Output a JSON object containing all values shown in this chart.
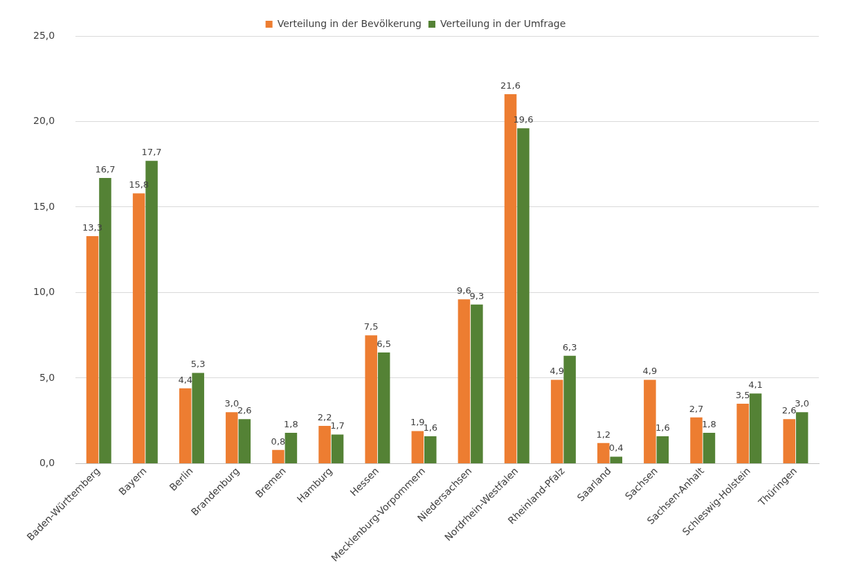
{
  "chart_data": {
    "type": "bar",
    "categories": [
      "Baden-Württemberg",
      "Bayern",
      "Berlin",
      "Brandenburg",
      "Bremen",
      "Hamburg",
      "Hessen",
      "Mecklenburg-Vorpommern",
      "Niedersachsen",
      "Nordrhein-Westfalen",
      "Rheinland-Pfalz",
      "Saarland",
      "Sachsen",
      "Sachsen-Anhalt",
      "Schleswig-Holstein",
      "Thüringen"
    ],
    "series": [
      {
        "name": "Verteilung in der Bevölkerung",
        "color": "#ed7d31",
        "values": [
          13.3,
          15.8,
          4.4,
          3.0,
          0.8,
          2.2,
          7.5,
          1.9,
          9.6,
          21.6,
          4.9,
          1.2,
          4.9,
          2.7,
          3.5,
          2.6
        ],
        "value_labels": [
          "13,3",
          "15,8",
          "4,4",
          "3,0",
          "0,8",
          "2,2",
          "7,5",
          "1,9",
          "9,6",
          "21,6",
          "4,9",
          "1,2",
          "4,9",
          "2,7",
          "3,5",
          "2,6"
        ]
      },
      {
        "name": "Verteilung in der Umfrage",
        "color": "#548235",
        "values": [
          16.7,
          17.7,
          5.3,
          2.6,
          1.8,
          1.7,
          6.5,
          1.6,
          9.3,
          19.6,
          6.3,
          0.4,
          1.6,
          1.8,
          4.1,
          3.0
        ],
        "value_labels": [
          "16,7",
          "17,7",
          "5,3",
          "2,6",
          "1,8",
          "1,7",
          "6,5",
          "1,6",
          "9,3",
          "19,6",
          "6,3",
          "0,4",
          "1,6",
          "1,8",
          "4,1",
          "3,0"
        ]
      }
    ],
    "ylim": [
      0,
      25
    ],
    "yticks": [
      {
        "value": 0,
        "label": "0,0"
      },
      {
        "value": 5,
        "label": "5,0"
      },
      {
        "value": 10,
        "label": "10,0"
      },
      {
        "value": 15,
        "label": "15,0"
      },
      {
        "value": 20,
        "label": "20,0"
      },
      {
        "value": 25,
        "label": "25,0"
      }
    ],
    "grid": "y",
    "legend": "top"
  }
}
